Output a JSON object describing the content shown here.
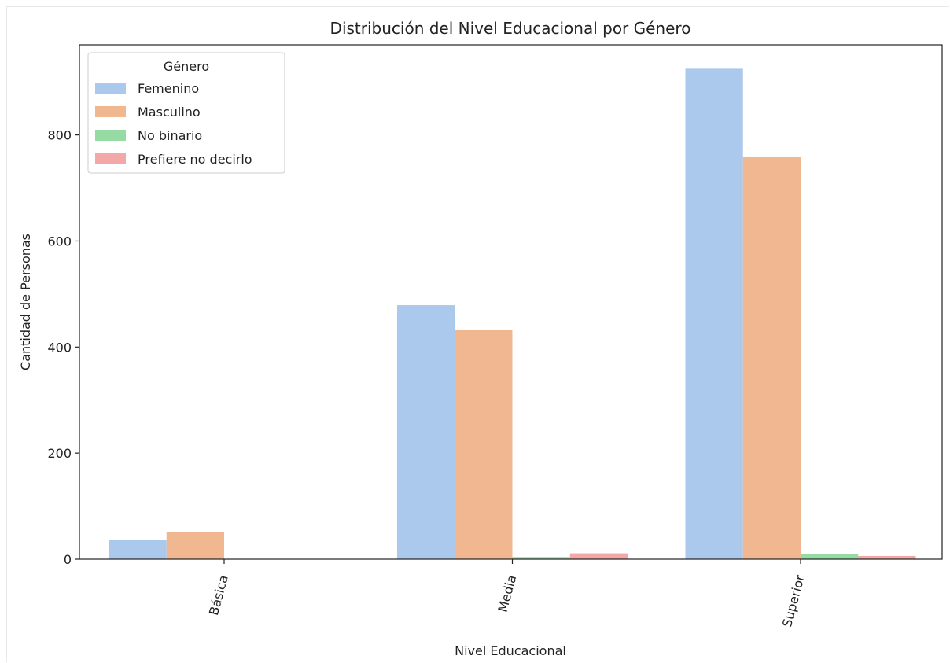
{
  "chart_data": {
    "type": "bar",
    "title": "Distribución del Nivel Educacional por Género",
    "xlabel": "Nivel Educacional",
    "ylabel": "Cantidad de Personas",
    "categories": [
      "Básica",
      "Media",
      "Superior"
    ],
    "series": [
      {
        "name": "Femenino",
        "color": "#abc9ec",
        "values": [
          36,
          479,
          925
        ]
      },
      {
        "name": "Masculino",
        "color": "#f0b790",
        "values": [
          51,
          433,
          758
        ]
      },
      {
        "name": "No binario",
        "color": "#97dba4",
        "values": [
          0,
          4,
          9
        ]
      },
      {
        "name": "Prefiere no decirlo",
        "color": "#f2a8a6",
        "values": [
          0,
          11,
          6
        ]
      }
    ],
    "ylim": [
      0,
      970
    ],
    "yticks": [
      0,
      200,
      400,
      600,
      800
    ],
    "legend": {
      "title": "Género",
      "position": "top-left"
    },
    "grid": false
  }
}
